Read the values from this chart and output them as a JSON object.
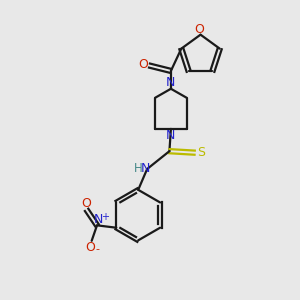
{
  "bg_color": "#e8e8e8",
  "bond_color": "#1a1a1a",
  "n_color": "#2222cc",
  "o_color": "#cc2200",
  "s_color": "#bbbb00",
  "h_color": "#448888",
  "lw": 1.6,
  "xlim": [
    0,
    10
  ],
  "ylim": [
    0,
    10
  ]
}
